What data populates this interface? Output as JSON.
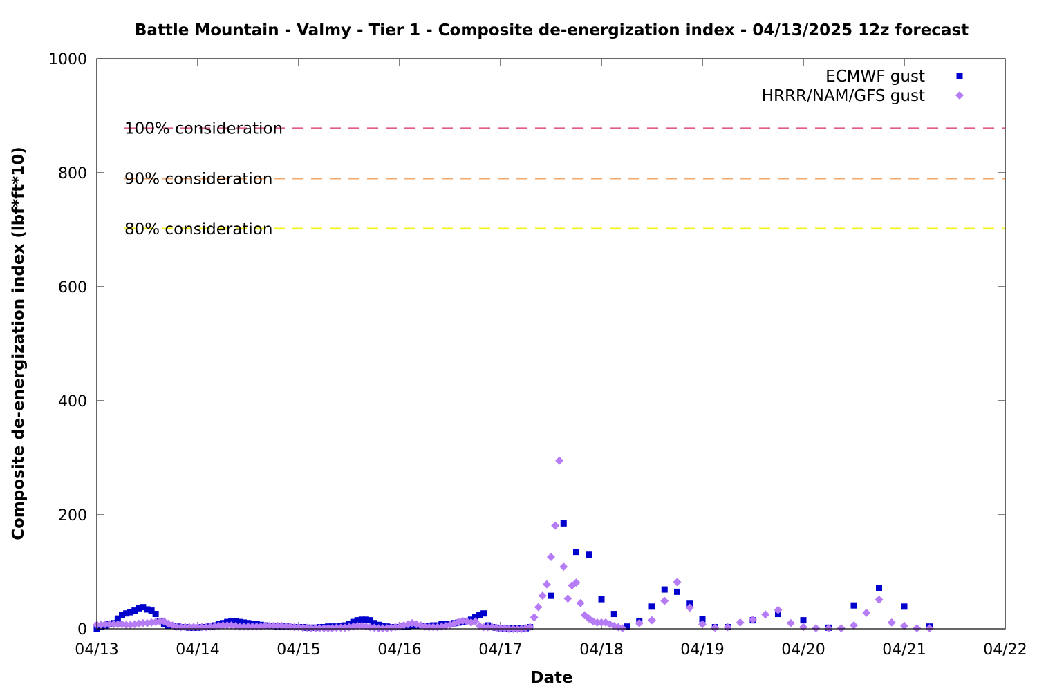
{
  "chart_data": {
    "type": "scatter",
    "title": "Battle Mountain - Valmy - Tier 1 - Composite de-energization index - 04/13/2025 12z forecast",
    "xlabel": "Date",
    "ylabel": "Composite de-energization index (lbf*ft*10)",
    "x_ticks": [
      "04/13",
      "04/14",
      "04/15",
      "04/16",
      "04/17",
      "04/18",
      "04/19",
      "04/20",
      "04/21",
      "04/22"
    ],
    "y_ticks": [
      "0",
      "200",
      "400",
      "600",
      "800",
      "1000"
    ],
    "ylim": [
      0,
      1000
    ],
    "x_unit_note": "days after 04/13 00z",
    "xlim_days": [
      0,
      9
    ],
    "legend_position": "top-right",
    "thresholds": [
      {
        "label": "100% consideration",
        "value": 878,
        "color": "#e05c80"
      },
      {
        "label": "90% consideration",
        "value": 790,
        "color": "#f5a86b"
      },
      {
        "label": "80% consideration",
        "value": 702,
        "color": "#f3f21a"
      }
    ],
    "series": [
      {
        "name": "ECMWF gust",
        "color": "#0000cc",
        "marker": "square",
        "points": [
          [
            0.0,
            0
          ],
          [
            0.042,
            4
          ],
          [
            0.083,
            6
          ],
          [
            0.125,
            8
          ],
          [
            0.167,
            10
          ],
          [
            0.208,
            18
          ],
          [
            0.25,
            24
          ],
          [
            0.292,
            27
          ],
          [
            0.333,
            29
          ],
          [
            0.375,
            32
          ],
          [
            0.417,
            36
          ],
          [
            0.458,
            38
          ],
          [
            0.5,
            34
          ],
          [
            0.542,
            32
          ],
          [
            0.583,
            26
          ],
          [
            0.625,
            14
          ],
          [
            0.667,
            9
          ],
          [
            0.708,
            6
          ],
          [
            0.75,
            5
          ],
          [
            0.792,
            4
          ],
          [
            0.833,
            3
          ],
          [
            0.875,
            3
          ],
          [
            0.917,
            2
          ],
          [
            0.958,
            2
          ],
          [
            1.0,
            2
          ],
          [
            1.042,
            3
          ],
          [
            1.083,
            3
          ],
          [
            1.125,
            4
          ],
          [
            1.167,
            6
          ],
          [
            1.208,
            8
          ],
          [
            1.25,
            10
          ],
          [
            1.292,
            12
          ],
          [
            1.333,
            13
          ],
          [
            1.375,
            13
          ],
          [
            1.417,
            12
          ],
          [
            1.458,
            11
          ],
          [
            1.5,
            10
          ],
          [
            1.542,
            9
          ],
          [
            1.583,
            8
          ],
          [
            1.625,
            7
          ],
          [
            1.667,
            6
          ],
          [
            1.708,
            5
          ],
          [
            1.75,
            5
          ],
          [
            1.792,
            4
          ],
          [
            1.833,
            4
          ],
          [
            1.875,
            4
          ],
          [
            1.917,
            3
          ],
          [
            1.958,
            3
          ],
          [
            2.0,
            3
          ],
          [
            2.042,
            3
          ],
          [
            2.083,
            2
          ],
          [
            2.125,
            2
          ],
          [
            2.167,
            2
          ],
          [
            2.208,
            3
          ],
          [
            2.25,
            3
          ],
          [
            2.292,
            4
          ],
          [
            2.333,
            4
          ],
          [
            2.375,
            4
          ],
          [
            2.417,
            5
          ],
          [
            2.458,
            6
          ],
          [
            2.5,
            8
          ],
          [
            2.542,
            12
          ],
          [
            2.583,
            15
          ],
          [
            2.625,
            16
          ],
          [
            2.667,
            16
          ],
          [
            2.708,
            15
          ],
          [
            2.75,
            10
          ],
          [
            2.792,
            7
          ],
          [
            2.833,
            5
          ],
          [
            2.875,
            4
          ],
          [
            2.917,
            3
          ],
          [
            2.958,
            3
          ],
          [
            3.0,
            3
          ],
          [
            3.042,
            4
          ],
          [
            3.083,
            4
          ],
          [
            3.125,
            5
          ],
          [
            3.167,
            5
          ],
          [
            3.208,
            5
          ],
          [
            3.25,
            5
          ],
          [
            3.292,
            5
          ],
          [
            3.333,
            6
          ],
          [
            3.375,
            6
          ],
          [
            3.417,
            8
          ],
          [
            3.458,
            9
          ],
          [
            3.5,
            9
          ],
          [
            3.542,
            10
          ],
          [
            3.583,
            11
          ],
          [
            3.625,
            12
          ],
          [
            3.667,
            14
          ],
          [
            3.708,
            16
          ],
          [
            3.75,
            20
          ],
          [
            3.792,
            24
          ],
          [
            3.833,
            27
          ],
          [
            3.875,
            6
          ],
          [
            3.917,
            3
          ],
          [
            3.958,
            2
          ],
          [
            4.0,
            1
          ],
          [
            4.042,
            1
          ],
          [
            4.083,
            0
          ],
          [
            4.125,
            1
          ],
          [
            4.167,
            1
          ],
          [
            4.208,
            1
          ],
          [
            4.25,
            1
          ],
          [
            4.292,
            3
          ],
          [
            4.5,
            58
          ],
          [
            4.625,
            185
          ],
          [
            4.75,
            135
          ],
          [
            4.875,
            130
          ],
          [
            5.0,
            52
          ],
          [
            5.125,
            26
          ],
          [
            5.25,
            4
          ],
          [
            5.375,
            13
          ],
          [
            5.5,
            39
          ],
          [
            5.625,
            69
          ],
          [
            5.75,
            65
          ],
          [
            5.875,
            44
          ],
          [
            6.0,
            17
          ],
          [
            6.125,
            3
          ],
          [
            6.25,
            3
          ],
          [
            6.5,
            15
          ],
          [
            6.75,
            26
          ],
          [
            7.0,
            15
          ],
          [
            7.25,
            2
          ],
          [
            7.5,
            41
          ],
          [
            7.75,
            71
          ],
          [
            8.0,
            39
          ],
          [
            8.25,
            4
          ]
        ]
      },
      {
        "name": "HRRR/NAM/GFS gust",
        "color": "#b57cf6",
        "marker": "diamond",
        "points": [
          [
            0.0,
            7
          ],
          [
            0.042,
            7
          ],
          [
            0.083,
            8
          ],
          [
            0.125,
            8
          ],
          [
            0.167,
            8
          ],
          [
            0.208,
            8
          ],
          [
            0.25,
            8
          ],
          [
            0.292,
            7
          ],
          [
            0.333,
            7
          ],
          [
            0.375,
            8
          ],
          [
            0.417,
            9
          ],
          [
            0.458,
            10
          ],
          [
            0.5,
            10
          ],
          [
            0.542,
            11
          ],
          [
            0.583,
            12
          ],
          [
            0.625,
            13
          ],
          [
            0.667,
            13
          ],
          [
            0.708,
            9
          ],
          [
            0.75,
            6
          ],
          [
            0.792,
            4
          ],
          [
            0.833,
            3
          ],
          [
            0.875,
            3
          ],
          [
            0.917,
            3
          ],
          [
            0.958,
            3
          ],
          [
            1.0,
            3
          ],
          [
            1.042,
            3
          ],
          [
            1.083,
            3
          ],
          [
            1.125,
            4
          ],
          [
            1.167,
            4
          ],
          [
            1.208,
            5
          ],
          [
            1.25,
            6
          ],
          [
            1.292,
            6
          ],
          [
            1.333,
            6
          ],
          [
            1.375,
            5
          ],
          [
            1.417,
            4
          ],
          [
            1.458,
            4
          ],
          [
            1.5,
            4
          ],
          [
            1.542,
            4
          ],
          [
            1.583,
            4
          ],
          [
            1.625,
            4
          ],
          [
            1.667,
            5
          ],
          [
            1.708,
            5
          ],
          [
            1.75,
            5
          ],
          [
            1.792,
            5
          ],
          [
            1.833,
            5
          ],
          [
            1.875,
            4
          ],
          [
            1.917,
            4
          ],
          [
            1.958,
            3
          ],
          [
            2.0,
            3
          ],
          [
            2.042,
            2
          ],
          [
            2.083,
            2
          ],
          [
            2.125,
            1
          ],
          [
            2.167,
            1
          ],
          [
            2.208,
            1
          ],
          [
            2.25,
            1
          ],
          [
            2.292,
            1
          ],
          [
            2.333,
            1
          ],
          [
            2.375,
            2
          ],
          [
            2.417,
            2
          ],
          [
            2.458,
            2
          ],
          [
            2.5,
            3
          ],
          [
            2.542,
            4
          ],
          [
            2.583,
            5
          ],
          [
            2.625,
            5
          ],
          [
            2.667,
            4
          ],
          [
            2.708,
            3
          ],
          [
            2.75,
            2
          ],
          [
            2.792,
            1
          ],
          [
            2.833,
            1
          ],
          [
            2.875,
            1
          ],
          [
            2.917,
            2
          ],
          [
            2.958,
            3
          ],
          [
            3.0,
            4
          ],
          [
            3.042,
            6
          ],
          [
            3.083,
            8
          ],
          [
            3.125,
            10
          ],
          [
            3.167,
            8
          ],
          [
            3.208,
            6
          ],
          [
            3.25,
            4
          ],
          [
            3.292,
            3
          ],
          [
            3.333,
            3
          ],
          [
            3.375,
            3
          ],
          [
            3.417,
            4
          ],
          [
            3.458,
            5
          ],
          [
            3.5,
            7
          ],
          [
            3.542,
            9
          ],
          [
            3.583,
            12
          ],
          [
            3.625,
            14
          ],
          [
            3.667,
            13
          ],
          [
            3.708,
            11
          ],
          [
            3.75,
            13
          ],
          [
            3.792,
            5
          ],
          [
            3.833,
            3
          ],
          [
            3.875,
            3
          ],
          [
            3.917,
            3
          ],
          [
            3.958,
            2
          ],
          [
            4.0,
            1
          ],
          [
            4.042,
            1
          ],
          [
            4.083,
            0
          ],
          [
            4.125,
            0
          ],
          [
            4.167,
            0
          ],
          [
            4.208,
            0
          ],
          [
            4.25,
            1
          ],
          [
            4.292,
            3
          ],
          [
            4.333,
            20
          ],
          [
            4.375,
            38
          ],
          [
            4.417,
            58
          ],
          [
            4.458,
            78
          ],
          [
            4.5,
            126
          ],
          [
            4.542,
            181
          ],
          [
            4.583,
            295
          ],
          [
            4.625,
            109
          ],
          [
            4.667,
            53
          ],
          [
            4.708,
            76
          ],
          [
            4.75,
            81
          ],
          [
            4.792,
            45
          ],
          [
            4.833,
            24
          ],
          [
            4.875,
            18
          ],
          [
            4.917,
            13
          ],
          [
            4.958,
            11
          ],
          [
            5.0,
            11
          ],
          [
            5.042,
            11
          ],
          [
            5.083,
            8
          ],
          [
            5.125,
            5
          ],
          [
            5.167,
            3
          ],
          [
            5.208,
            1
          ],
          [
            5.375,
            10
          ],
          [
            5.5,
            15
          ],
          [
            5.625,
            49
          ],
          [
            5.75,
            82
          ],
          [
            5.875,
            37
          ],
          [
            6.0,
            8
          ],
          [
            6.125,
            2
          ],
          [
            6.25,
            3
          ],
          [
            6.375,
            11
          ],
          [
            6.5,
            16
          ],
          [
            6.625,
            25
          ],
          [
            6.75,
            33
          ],
          [
            6.875,
            10
          ],
          [
            7.0,
            3
          ],
          [
            7.125,
            1
          ],
          [
            7.25,
            1
          ],
          [
            7.375,
            1
          ],
          [
            7.5,
            6
          ],
          [
            7.625,
            28
          ],
          [
            7.75,
            51
          ],
          [
            7.875,
            11
          ],
          [
            8.0,
            5
          ],
          [
            8.125,
            1
          ],
          [
            8.25,
            1
          ]
        ]
      }
    ]
  }
}
